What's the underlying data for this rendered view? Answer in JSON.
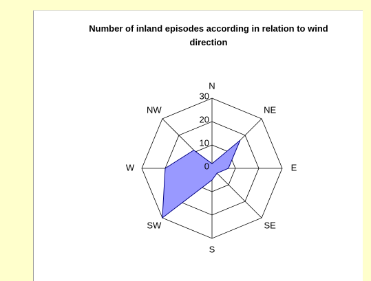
{
  "chart_data": {
    "type": "radar",
    "title": "Number of inland episodes according in relation to wind direction",
    "categories": [
      "N",
      "NE",
      "E",
      "SE",
      "S",
      "SW",
      "W",
      "NW"
    ],
    "values": [
      2,
      17,
      7,
      3,
      5,
      30,
      20,
      11
    ],
    "color": "#9999ff",
    "line_color": "#000080",
    "rlim": [
      0,
      30
    ],
    "rticks": [
      0,
      10,
      20,
      30
    ],
    "grid": true
  }
}
